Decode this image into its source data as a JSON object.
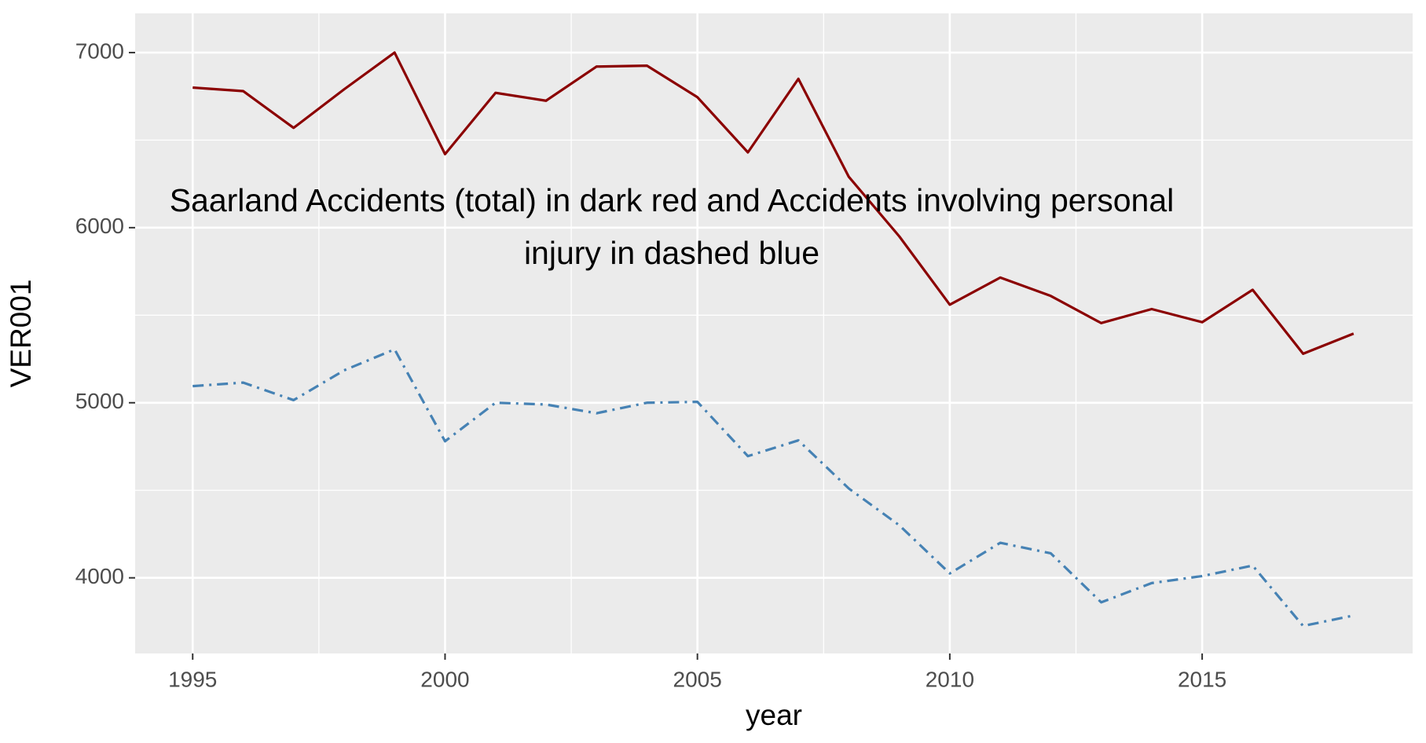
{
  "chart_data": {
    "type": "line",
    "annotation": [
      "Saarland Accidents (total) in dark red and Accidents involving personal",
      "injury in dashed blue"
    ],
    "xlabel": "year",
    "ylabel": "VER001",
    "x": [
      1995,
      1996,
      1997,
      1998,
      1999,
      2000,
      2001,
      2002,
      2003,
      2004,
      2005,
      2006,
      2007,
      2008,
      2009,
      2010,
      2011,
      2012,
      2013,
      2014,
      2015,
      2016,
      2017,
      2018
    ],
    "series": [
      {
        "color": "#8b0000",
        "linestyle": "solid",
        "values": [
          6800,
          6780,
          6570,
          6790,
          7000,
          6420,
          6770,
          6725,
          6920,
          6925,
          6745,
          6430,
          6850,
          6290,
          5950,
          5560,
          5715,
          5610,
          5455,
          5535,
          5460,
          5645,
          5280,
          5395
        ]
      },
      {
        "color": "#4682b4",
        "linestyle": "dashdot",
        "values": [
          5095,
          5115,
          5015,
          5185,
          5305,
          4780,
          5000,
          4990,
          4940,
          5000,
          5005,
          4695,
          4785,
          4510,
          4300,
          4025,
          4200,
          4140,
          3860,
          3970,
          4010,
          4070,
          3725,
          3785
        ]
      }
    ],
    "xlim": [
      1993.86,
      2019.17
    ],
    "xticks": [
      1995,
      2000,
      2005,
      2010,
      2015
    ],
    "ylim": [
      3568,
      7224
    ],
    "yticks": [
      4000,
      5000,
      6000,
      7000
    ],
    "grid": true
  }
}
